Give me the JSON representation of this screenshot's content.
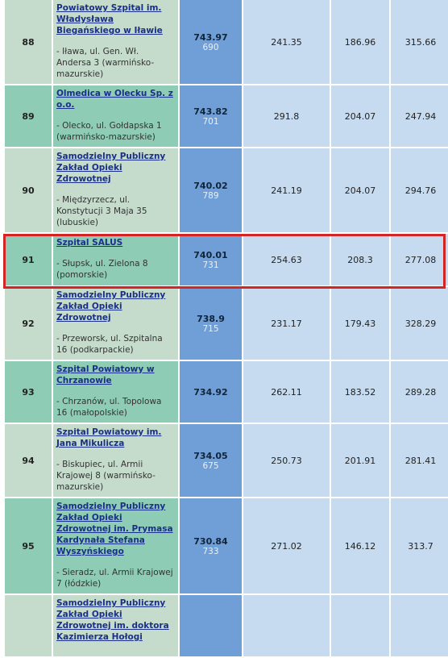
{
  "rows": [
    {
      "rank": "88",
      "name": "Powiatowy Szpital im. Władysława Biegańskiego w Iławie",
      "address": "- Iława, ul. Gen. Wł. Andersa 3 (warmińsko-mazurskie)",
      "total": "743.97",
      "sub": "690",
      "v1": "241.35",
      "v2": "186.96",
      "v3": "315.66",
      "h": 102
    },
    {
      "rank": "89",
      "name": "Olmedica w Olecku Sp. z o.o.",
      "address": "- Olecko, ul. Gołdapska 1 (warmińsko-mazurskie)",
      "total": "743.82",
      "sub": "701",
      "v1": "291.8",
      "v2": "204.07",
      "v3": "247.94",
      "h": 76
    },
    {
      "rank": "90",
      "name": "Samodzielny Publiczny Zakład Opieki Zdrowotnej",
      "address": "- Międzyrzecz, ul. Konstytucji 3 Maja 35 (lubuskie)",
      "total": "740.02",
      "sub": "789",
      "v1": "241.19",
      "v2": "204.07",
      "v3": "294.76",
      "h": 103
    },
    {
      "rank": "91",
      "name": "Szpital SALUS",
      "address": "- Słupsk, ul. Zielona 8 (pomorskie)",
      "total": "740.01",
      "sub": "731",
      "v1": "254.63",
      "v2": "208.3",
      "v3": "277.08",
      "h": 64
    },
    {
      "rank": "92",
      "name": "Samodzielny Publiczny Zakład Opieki Zdrowotnej",
      "address": "- Przeworsk, ul. Szpitalna 16 (podkarpackie)",
      "total": "738.9",
      "sub": "715",
      "v1": "231.17",
      "v2": "179.43",
      "v3": "328.29",
      "h": 87
    },
    {
      "rank": "93",
      "name": "Szpital Powiatowy w Chrzanowie",
      "address": "- Chrzanów, ul. Topolowa 16 (małopolskie)",
      "total": "734.92",
      "sub": "",
      "v1": "262.11",
      "v2": "183.52",
      "v3": "289.28",
      "h": 76
    },
    {
      "rank": "94",
      "name": "Szpital Powiatowy im. Jana Mikulicza",
      "address": "- Biskupiec, ul. Armii Krajowej 8 (warmińsko-mazurskie)",
      "total": "734.05",
      "sub": "675",
      "v1": "250.73",
      "v2": "201.91",
      "v3": "281.41",
      "h": 88
    },
    {
      "rank": "95",
      "name": "Samodzielny Publiczny Zakład Opieki Zdrowotnej im. Prymasa Kardynała Stefana Wyszyńskiego",
      "address": "- Sieradz, ul. Armii Krajowej 7 (łódzkie)",
      "total": "730.84",
      "sub": "733",
      "v1": "271.02",
      "v2": "146.12",
      "v3": "313.7",
      "h": 114
    },
    {
      "rank": "",
      "name": "Samodzielny Publiczny Zakład Opieki Zdrowotnej im. doktora Kazimierza Hołogi",
      "address": "",
      "total": "",
      "sub": "",
      "v1": "",
      "v2": "",
      "v3": "",
      "h": 60
    }
  ],
  "highlight_rank": "91"
}
